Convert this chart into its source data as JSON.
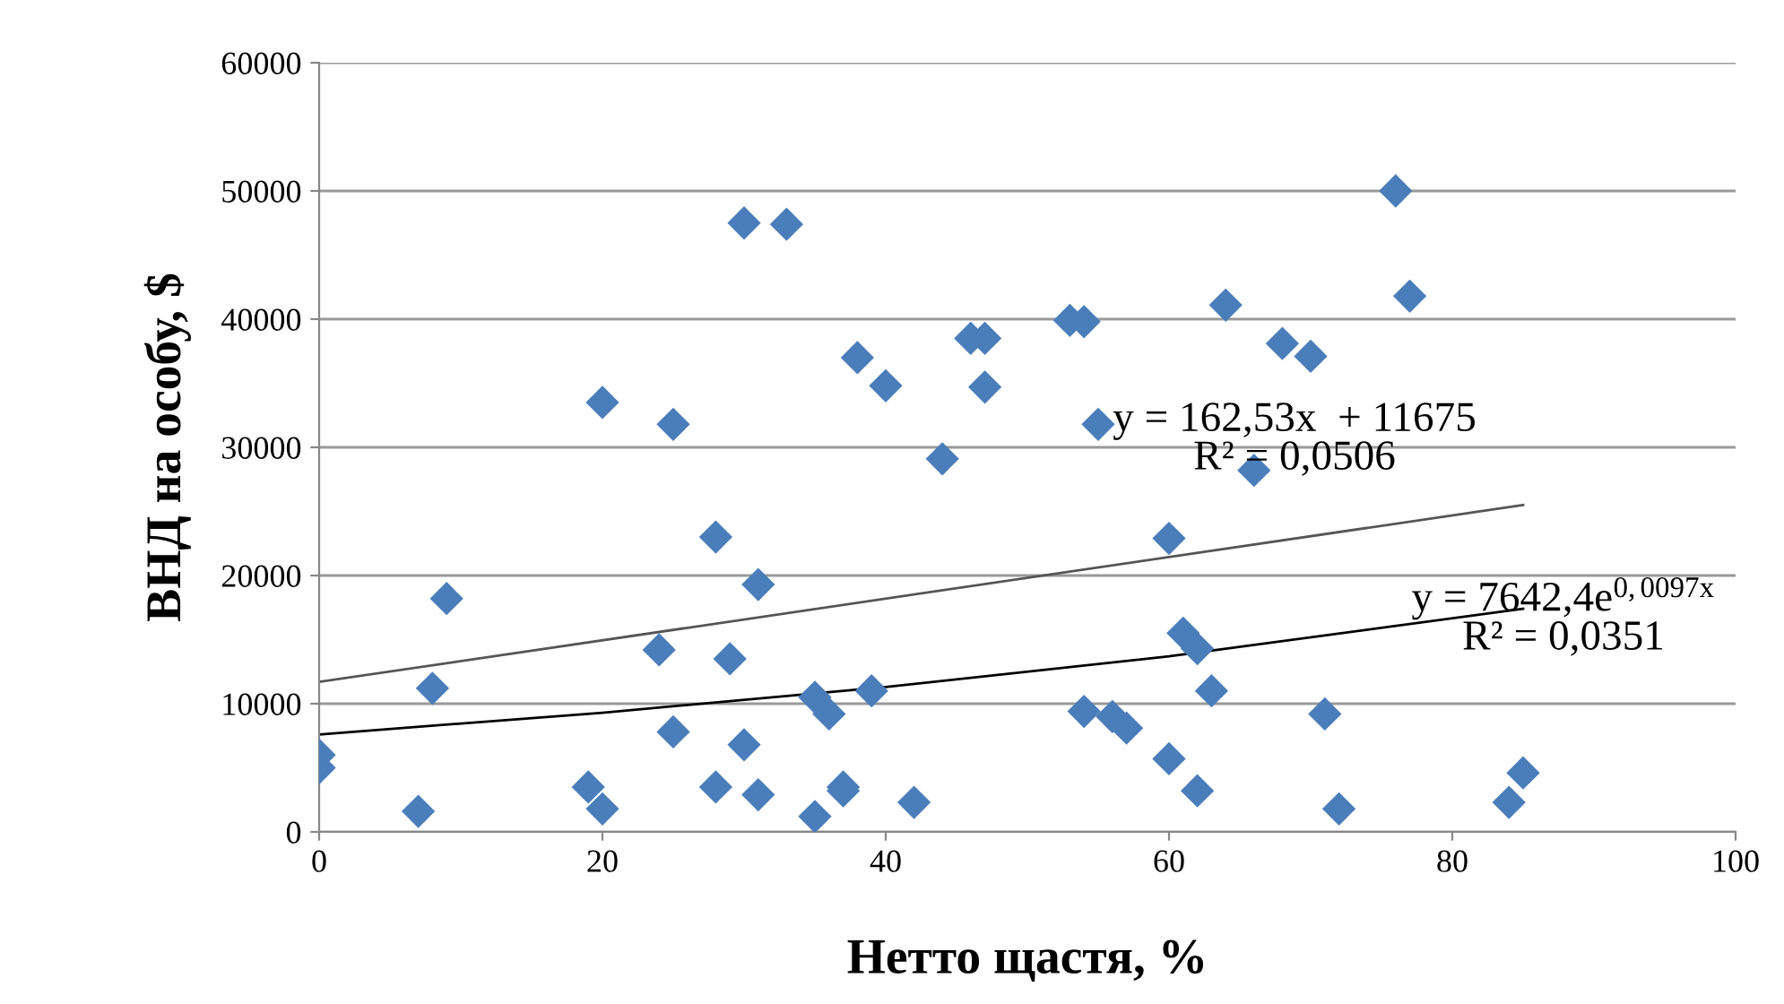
{
  "chart_data": {
    "type": "scatter",
    "xlabel": "Нетто щастя, %",
    "ylabel": "ВНД на особу, $",
    "xlim": [
      0,
      100
    ],
    "xticks": [
      0,
      20,
      40,
      60,
      80,
      100
    ],
    "ylim": [
      0,
      60000
    ],
    "yticks": [
      0,
      10000,
      20000,
      30000,
      40000,
      50000,
      60000
    ],
    "grid": "y",
    "series": [
      {
        "color": "#4a7ebb",
        "marker": "diamond",
        "x": [
          0,
          0,
          7,
          8,
          9,
          19,
          20,
          20,
          24,
          25,
          25,
          28,
          28,
          29,
          30,
          30,
          31,
          31,
          33,
          35,
          35,
          36,
          37,
          37,
          38,
          39,
          40,
          42,
          44,
          46,
          47,
          47,
          53,
          54,
          54,
          55,
          56,
          57,
          60,
          60,
          61,
          62,
          62,
          63,
          64,
          66,
          68,
          70,
          71,
          72,
          76,
          77,
          84,
          85
        ],
        "values": [
          6000,
          5000,
          1600,
          11200,
          18200,
          3500,
          1800,
          33500,
          14200,
          31800,
          7800,
          23000,
          3500,
          13500,
          47500,
          6800,
          19300,
          2900,
          47400,
          10500,
          1200,
          9200,
          3500,
          3200,
          37000,
          11000,
          34800,
          2300,
          29100,
          38500,
          38500,
          34700,
          39900,
          39800,
          9400,
          31800,
          9000,
          8100,
          22900,
          5700,
          15500,
          14300,
          3200,
          11000,
          41100,
          28200,
          38100,
          37100,
          9200,
          1800,
          50000,
          41800,
          2300,
          4600
        ]
      },
      {
        "type": "line",
        "color": "#555555",
        "x": [
          0,
          85
        ],
        "values": [
          11700,
          25500
        ]
      },
      {
        "type": "line",
        "color": "#000000",
        "x": [
          0,
          20,
          40,
          60,
          85
        ],
        "values": [
          7600,
          9300,
          11300,
          13700,
          17400
        ]
      }
    ],
    "annotations": [
      "y = 162,53x  + 11675\nR² = 0,0506",
      "y = 7642,4e$^{0,0097x}$\nR² = 0,0351"
    ]
  }
}
